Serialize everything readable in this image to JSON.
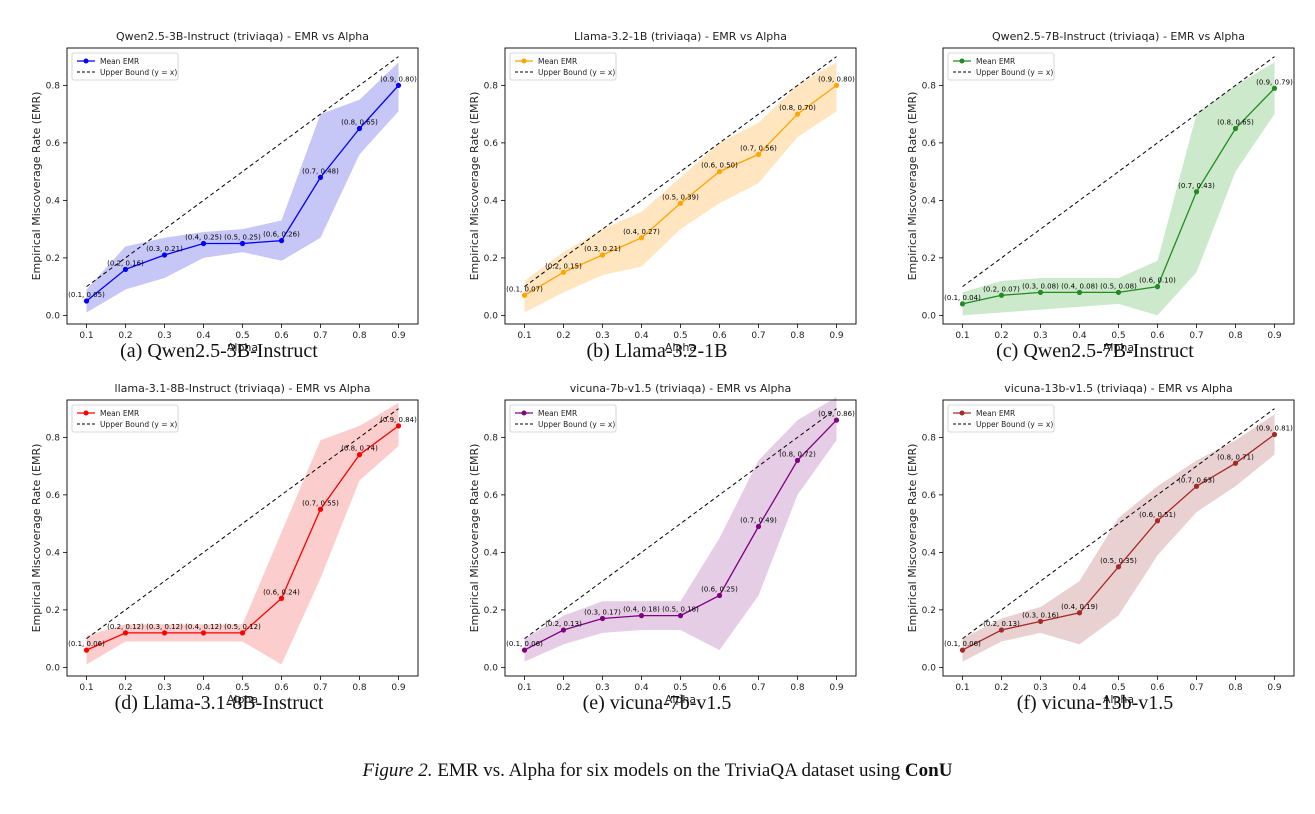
{
  "figure_caption": {
    "label": "Figure 2.",
    "text": "EMR vs. Alpha for six models on the TriviaQA dataset using",
    "method": "ConU"
  },
  "chart_data": [
    {
      "type": "line",
      "title": "Qwen2.5-3B-Instruct (triviaqa) - EMR vs Alpha",
      "subcaption": "(a) Qwen2.5-3B-Instruct",
      "xlabel": "Alpha",
      "ylabel": "Empirical Miscoverage Rate (EMR)",
      "color": "#0000ff",
      "band_color": "#b8b8f5",
      "x": [
        0.1,
        0.2,
        0.3,
        0.4,
        0.5,
        0.6,
        0.7,
        0.8,
        0.9
      ],
      "x_ticks": [
        "0.1",
        "0.2",
        "0.3",
        "0.4",
        "0.5",
        "0.6",
        "0.7",
        "0.8",
        "0.9"
      ],
      "y_ticks": [
        "0.0",
        "0.2",
        "0.4",
        "0.6",
        "0.8"
      ],
      "ylim": [
        -0.03,
        0.93
      ],
      "series": [
        {
          "name": "Mean EMR",
          "values": [
            0.05,
            0.16,
            0.21,
            0.25,
            0.25,
            0.26,
            0.48,
            0.65,
            0.8
          ]
        },
        {
          "name": "Upper Bound (y = x)",
          "values": [
            0.1,
            0.2,
            0.3,
            0.4,
            0.5,
            0.6,
            0.7,
            0.8,
            0.9
          ]
        }
      ],
      "band_low": [
        0.01,
        0.09,
        0.13,
        0.2,
        0.22,
        0.19,
        0.27,
        0.56,
        0.71
      ],
      "band_high": [
        0.09,
        0.24,
        0.27,
        0.29,
        0.3,
        0.33,
        0.7,
        0.75,
        0.88
      ],
      "data_labels": [
        "(0.1, 0.05)",
        "(0.2, 0.16)",
        "(0.3, 0.21)",
        "(0.4, 0.25)",
        "(0.5, 0.25)",
        "(0.6, 0.26)",
        "(0.7, 0.48)",
        "(0.8, 0.65)",
        "(0.9, 0.80)"
      ],
      "legend_position": "top-left"
    },
    {
      "type": "line",
      "title": "Llama-3.2-1B (triviaqa) - EMR vs Alpha",
      "subcaption": "(b) Llama-3.2-1B",
      "xlabel": "Alpha",
      "ylabel": "Empirical Miscoverage Rate (EMR)",
      "color": "#ffa500",
      "band_color": "#ffe0b0",
      "x": [
        0.1,
        0.2,
        0.3,
        0.4,
        0.5,
        0.6,
        0.7,
        0.8,
        0.9
      ],
      "x_ticks": [
        "0.1",
        "0.2",
        "0.3",
        "0.4",
        "0.5",
        "0.6",
        "0.7",
        "0.8",
        "0.9"
      ],
      "y_ticks": [
        "0.0",
        "0.2",
        "0.4",
        "0.6",
        "0.8"
      ],
      "ylim": [
        -0.03,
        0.93
      ],
      "series": [
        {
          "name": "Mean EMR",
          "values": [
            0.07,
            0.15,
            0.21,
            0.27,
            0.39,
            0.5,
            0.56,
            0.7,
            0.8
          ]
        },
        {
          "name": "Upper Bound (y = x)",
          "values": [
            0.1,
            0.2,
            0.3,
            0.4,
            0.5,
            0.6,
            0.7,
            0.8,
            0.9
          ]
        }
      ],
      "band_low": [
        0.01,
        0.08,
        0.14,
        0.17,
        0.3,
        0.39,
        0.46,
        0.62,
        0.71
      ],
      "band_high": [
        0.12,
        0.22,
        0.3,
        0.36,
        0.48,
        0.6,
        0.67,
        0.8,
        0.88
      ],
      "data_labels": [
        "(0.1, 0.07)",
        "(0.2, 0.15)",
        "(0.3, 0.21)",
        "(0.4, 0.27)",
        "(0.5, 0.39)",
        "(0.6, 0.50)",
        "(0.7, 0.56)",
        "(0.8, 0.70)",
        "(0.9, 0.80)"
      ],
      "legend_position": "top-left"
    },
    {
      "type": "line",
      "title": "Qwen2.5-7B-Instruct (triviaqa) - EMR vs Alpha",
      "subcaption": "(c) Qwen2.5-7B-Instruct",
      "xlabel": "Alpha",
      "ylabel": "Empirical Miscoverage Rate (EMR)",
      "color": "#228b22",
      "band_color": "#bfe3bf",
      "x": [
        0.1,
        0.2,
        0.3,
        0.4,
        0.5,
        0.6,
        0.7,
        0.8,
        0.9
      ],
      "x_ticks": [
        "0.1",
        "0.2",
        "0.3",
        "0.4",
        "0.5",
        "0.6",
        "0.7",
        "0.8",
        "0.9"
      ],
      "y_ticks": [
        "0.0",
        "0.2",
        "0.4",
        "0.6",
        "0.8"
      ],
      "ylim": [
        -0.03,
        0.93
      ],
      "series": [
        {
          "name": "Mean EMR",
          "values": [
            0.04,
            0.07,
            0.08,
            0.08,
            0.08,
            0.1,
            0.43,
            0.65,
            0.79
          ]
        },
        {
          "name": "Upper Bound (y = x)",
          "values": [
            0.1,
            0.2,
            0.3,
            0.4,
            0.5,
            0.6,
            0.7,
            0.8,
            0.9
          ]
        }
      ],
      "band_low": [
        0.0,
        0.01,
        0.02,
        0.03,
        0.04,
        0.0,
        0.15,
        0.5,
        0.7
      ],
      "band_high": [
        0.08,
        0.12,
        0.13,
        0.13,
        0.13,
        0.19,
        0.7,
        0.8,
        0.88
      ],
      "data_labels": [
        "(0.1, 0.04)",
        "(0.2, 0.07)",
        "(0.3, 0.08)",
        "(0.4, 0.08)",
        "(0.5, 0.08)",
        "(0.6, 0.10)",
        "(0.7, 0.43)",
        "(0.8, 0.65)",
        "(0.9, 0.79)"
      ],
      "legend_position": "top-left"
    },
    {
      "type": "line",
      "title": "llama-3.1-8B-Instruct (triviaqa) - EMR vs Alpha",
      "subcaption": "(d) Llama-3.1-8B-Instruct",
      "xlabel": "Alpha",
      "ylabel": "Empirical Miscoverage Rate (EMR)",
      "color": "#ff0000",
      "band_color": "#fbc0c0",
      "x": [
        0.1,
        0.2,
        0.3,
        0.4,
        0.5,
        0.6,
        0.7,
        0.8,
        0.9
      ],
      "x_ticks": [
        "0.1",
        "0.2",
        "0.3",
        "0.4",
        "0.5",
        "0.6",
        "0.7",
        "0.8",
        "0.9"
      ],
      "y_ticks": [
        "0.0",
        "0.2",
        "0.4",
        "0.6",
        "0.8"
      ],
      "ylim": [
        -0.03,
        0.93
      ],
      "series": [
        {
          "name": "Mean EMR",
          "values": [
            0.06,
            0.12,
            0.12,
            0.12,
            0.12,
            0.24,
            0.55,
            0.74,
            0.84
          ]
        },
        {
          "name": "Upper Bound (y = x)",
          "values": [
            0.1,
            0.2,
            0.3,
            0.4,
            0.5,
            0.6,
            0.7,
            0.8,
            0.9
          ]
        }
      ],
      "band_low": [
        0.01,
        0.09,
        0.09,
        0.09,
        0.09,
        0.01,
        0.31,
        0.65,
        0.77
      ],
      "band_high": [
        0.11,
        0.15,
        0.15,
        0.15,
        0.15,
        0.47,
        0.79,
        0.84,
        0.92
      ],
      "data_labels": [
        "(0.1, 0.06)",
        "(0.2, 0.12)",
        "(0.3, 0.12)",
        "(0.4, 0.12)",
        "(0.5, 0.12)",
        "(0.6, 0.24)",
        "(0.7, 0.55)",
        "(0.8, 0.74)",
        "(0.9, 0.84)"
      ],
      "legend_position": "top-left"
    },
    {
      "type": "line",
      "title": "vicuna-7b-v1.5 (triviaqa) - EMR vs Alpha",
      "subcaption": "(e) vicuna-7b-v1.5",
      "xlabel": "Alpha",
      "ylabel": "Empirical Miscoverage Rate (EMR)",
      "color": "#800080",
      "band_color": "#dfc2df",
      "x": [
        0.1,
        0.2,
        0.3,
        0.4,
        0.5,
        0.6,
        0.7,
        0.8,
        0.9
      ],
      "x_ticks": [
        "0.1",
        "0.2",
        "0.3",
        "0.4",
        "0.5",
        "0.6",
        "0.7",
        "0.8",
        "0.9"
      ],
      "y_ticks": [
        "0.0",
        "0.2",
        "0.4",
        "0.6",
        "0.8"
      ],
      "ylim": [
        -0.03,
        0.93
      ],
      "series": [
        {
          "name": "Mean EMR",
          "values": [
            0.06,
            0.13,
            0.17,
            0.18,
            0.18,
            0.25,
            0.49,
            0.72,
            0.86
          ]
        },
        {
          "name": "Upper Bound (y = x)",
          "values": [
            0.1,
            0.2,
            0.3,
            0.4,
            0.5,
            0.6,
            0.7,
            0.8,
            0.9
          ]
        }
      ],
      "band_low": [
        0.02,
        0.08,
        0.12,
        0.13,
        0.13,
        0.06,
        0.25,
        0.6,
        0.79
      ],
      "band_high": [
        0.1,
        0.18,
        0.23,
        0.23,
        0.23,
        0.45,
        0.72,
        0.86,
        0.94
      ],
      "data_labels": [
        "(0.1, 0.06)",
        "(0.2, 0.13)",
        "(0.3, 0.17)",
        "(0.4, 0.18)",
        "(0.5, 0.18)",
        "(0.6, 0.25)",
        "(0.7, 0.49)",
        "(0.8, 0.72)",
        "(0.9, 0.86)"
      ],
      "legend_position": "top-left"
    },
    {
      "type": "line",
      "title": "vicuna-13b-v1.5 (triviaqa) - EMR vs Alpha",
      "subcaption": "(f) vicuna-13b-v1.5",
      "xlabel": "Alpha",
      "ylabel": "Empirical Miscoverage Rate (EMR)",
      "color": "#a52a2a",
      "band_color": "#e5c5c5",
      "x": [
        0.1,
        0.2,
        0.3,
        0.4,
        0.5,
        0.6,
        0.7,
        0.8,
        0.9
      ],
      "x_ticks": [
        "0.1",
        "0.2",
        "0.3",
        "0.4",
        "0.5",
        "0.6",
        "0.7",
        "0.8",
        "0.9"
      ],
      "y_ticks": [
        "0.0",
        "0.2",
        "0.4",
        "0.6",
        "0.8"
      ],
      "ylim": [
        -0.03,
        0.93
      ],
      "series": [
        {
          "name": "Mean EMR",
          "values": [
            0.06,
            0.13,
            0.16,
            0.19,
            0.35,
            0.51,
            0.63,
            0.71,
            0.81
          ]
        },
        {
          "name": "Upper Bound (y = x)",
          "values": [
            0.1,
            0.2,
            0.3,
            0.4,
            0.5,
            0.6,
            0.7,
            0.8,
            0.9
          ]
        }
      ],
      "band_low": [
        0.02,
        0.09,
        0.12,
        0.08,
        0.18,
        0.39,
        0.54,
        0.63,
        0.74
      ],
      "band_high": [
        0.1,
        0.17,
        0.21,
        0.3,
        0.52,
        0.63,
        0.72,
        0.79,
        0.88
      ],
      "data_labels": [
        "(0.1, 0.06)",
        "(0.2, 0.13)",
        "(0.3, 0.16)",
        "(0.4, 0.19)",
        "(0.5, 0.35)",
        "(0.6, 0.51)",
        "(0.7, 0.63)",
        "(0.8, 0.71)",
        "(0.9, 0.81)"
      ],
      "legend_position": "top-left"
    }
  ]
}
